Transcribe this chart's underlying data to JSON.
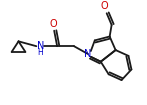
{
  "bg_color": "#ffffff",
  "bond_color": "#1a1a1a",
  "bond_width": 1.3,
  "figsize": [
    1.47,
    1.05
  ],
  "dpi": 100,
  "xlim": [
    0,
    147
  ],
  "ylim": [
    0,
    105
  ]
}
